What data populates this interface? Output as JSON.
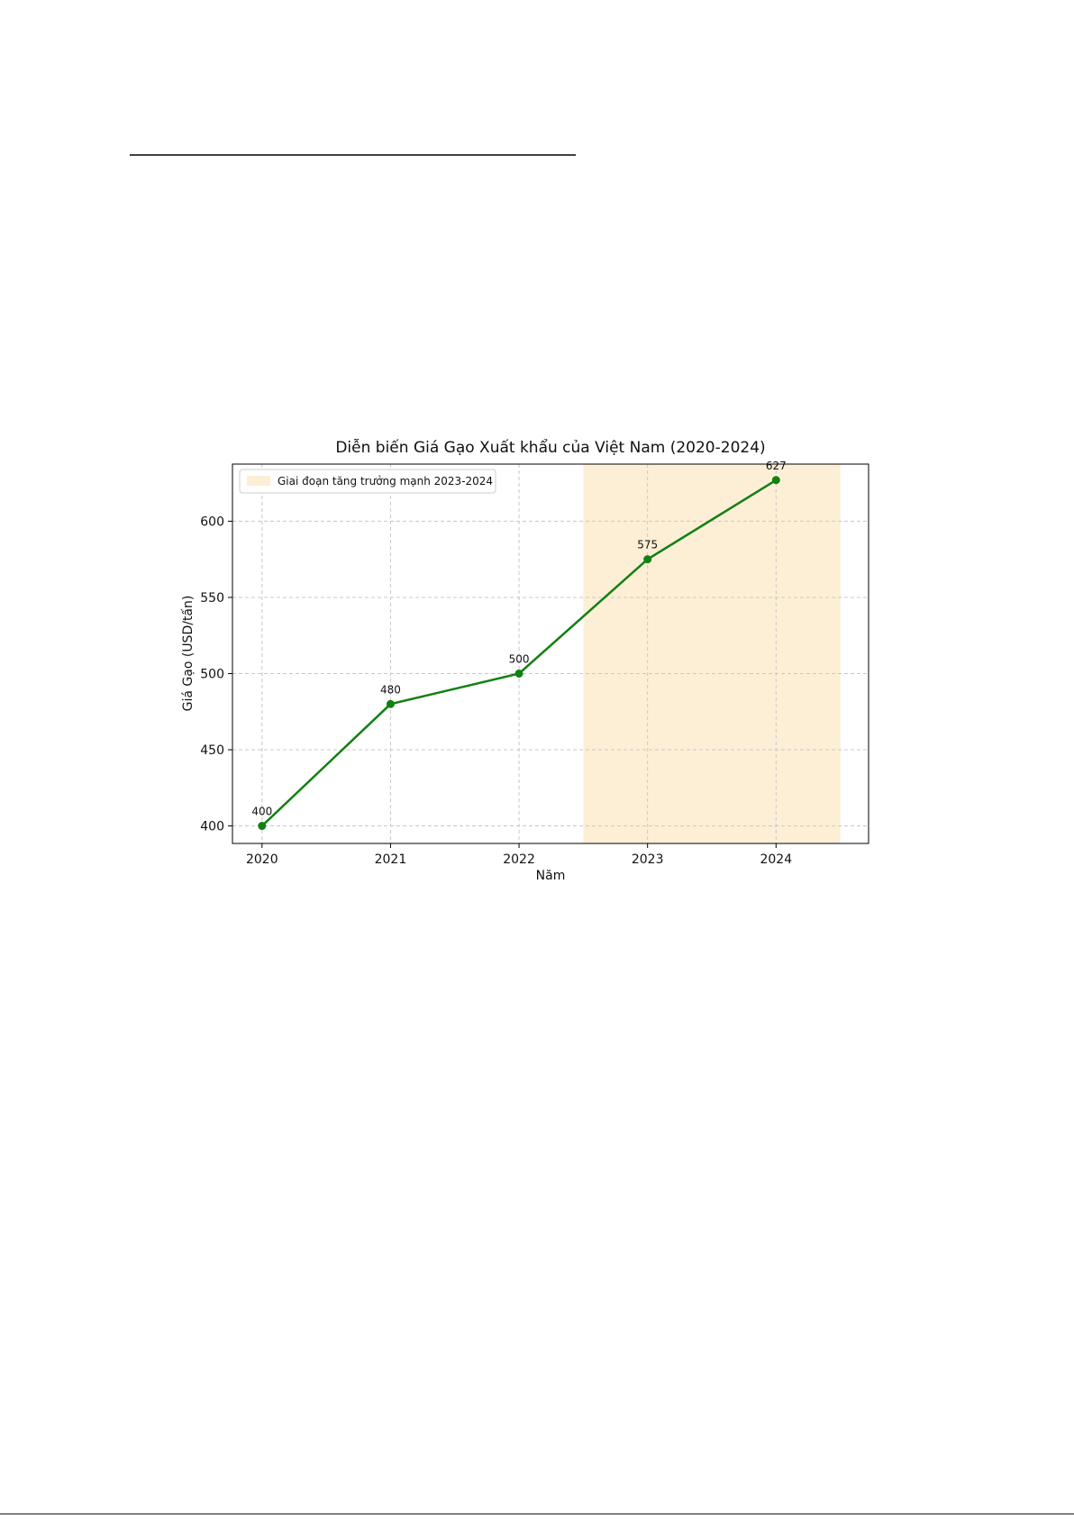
{
  "chart_data": {
    "type": "line",
    "title": "Diễn biến Giá Gạo Xuất khẩu của Việt Nam (2020-2024)",
    "x_label": "Năm",
    "y_label": "Giá Gạo (USD/tấn)",
    "x": [
      2020,
      2021,
      2022,
      2023,
      2024
    ],
    "series": [
      {
        "name": "Giá Gạo",
        "color": "#128012",
        "values": [
          400,
          480,
          500,
          575,
          627
        ]
      }
    ],
    "highlight": {
      "range": [
        2022.5,
        2024.5
      ],
      "label": "Giai đoạn tăng trưởng mạnh 2023-2024",
      "color": "#fdefd6"
    },
    "xlim": [
      2019.77,
      2024.72
    ],
    "ylim": [
      388.5,
      637.5
    ],
    "xticks": [
      2020,
      2021,
      2022,
      2023,
      2024
    ],
    "yticks": [
      400,
      450,
      500,
      550,
      600
    ],
    "grid": true,
    "legend": "upper left",
    "data_labels": true
  }
}
